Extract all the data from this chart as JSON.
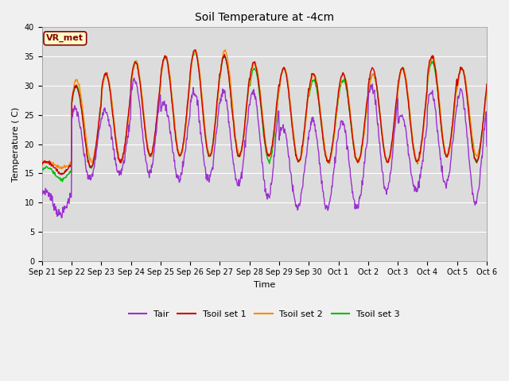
{
  "title": "Soil Temperature at -4cm",
  "xlabel": "Time",
  "ylabel": "Temperature ( C)",
  "ylim": [
    0,
    40
  ],
  "yticks": [
    0,
    5,
    10,
    15,
    20,
    25,
    30,
    35,
    40
  ],
  "xlim": [
    0,
    15
  ],
  "bg_color": "#dcdcdc",
  "fig_bg_color": "#f0f0f0",
  "legend_labels": [
    "Tair",
    "Tsoil set 1",
    "Tsoil set 2",
    "Tsoil set 3"
  ],
  "legend_colors": [
    "#9b30d0",
    "#cc0000",
    "#ff8800",
    "#00bb00"
  ],
  "annotation_text": "VR_met",
  "annotation_fg": "#8b0000",
  "annotation_bg": "#ffffcc",
  "line_colors": {
    "Tair": "#9b30d0",
    "Tsoil1": "#cc0000",
    "Tsoil2": "#ff8800",
    "Tsoil3": "#00bb00"
  },
  "xtick_labels": [
    "Sep 21",
    "Sep 22",
    "Sep 23",
    "Sep 24",
    "Sep 25",
    "Sep 26",
    "Sep 27",
    "Sep 28",
    "Sep 29",
    "Sep 30",
    "Oct 1",
    "Oct 2",
    "Oct 3",
    "Oct 4",
    "Oct 5",
    "Oct 6"
  ]
}
